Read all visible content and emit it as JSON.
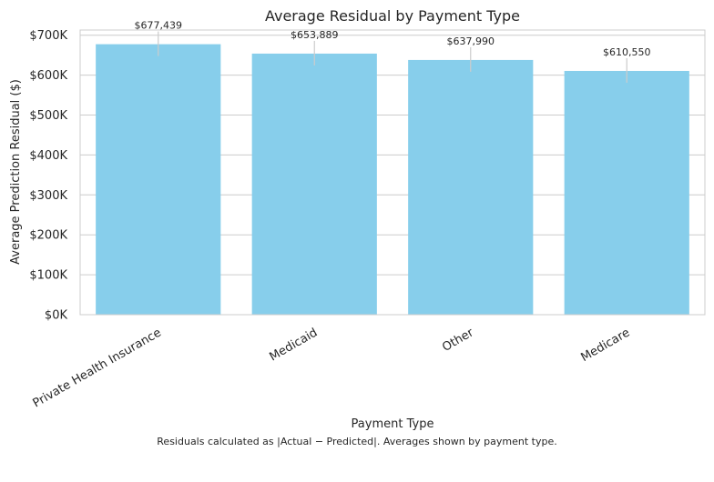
{
  "chart_data": {
    "type": "bar",
    "title": "Average Residual by Payment Type",
    "xlabel": "Payment Type",
    "ylabel": "Average Prediction Residual ($)",
    "categories": [
      "Private Health Insurance",
      "Medicaid",
      "Other",
      "Medicare"
    ],
    "values": [
      677439,
      653889,
      637990,
      610550
    ],
    "data_labels": [
      "$677,439",
      "$653,889",
      "$637,990",
      "$610,550"
    ],
    "ylim": [
      0,
      713000
    ],
    "yticks": [
      0,
      100000,
      200000,
      300000,
      400000,
      500000,
      600000,
      700000
    ],
    "ytick_labels": [
      "$0K",
      "$100K",
      "$200K",
      "$300K",
      "$400K",
      "$500K",
      "$600K",
      "$700K"
    ],
    "grid": "horizontal",
    "legend": "none",
    "bar_color": "#87CEEB",
    "grid_color": "#cccccc",
    "annotation_line_color": "#cccccc",
    "caption": "Residuals calculated as |Actual − Predicted|. Averages shown by payment type."
  }
}
